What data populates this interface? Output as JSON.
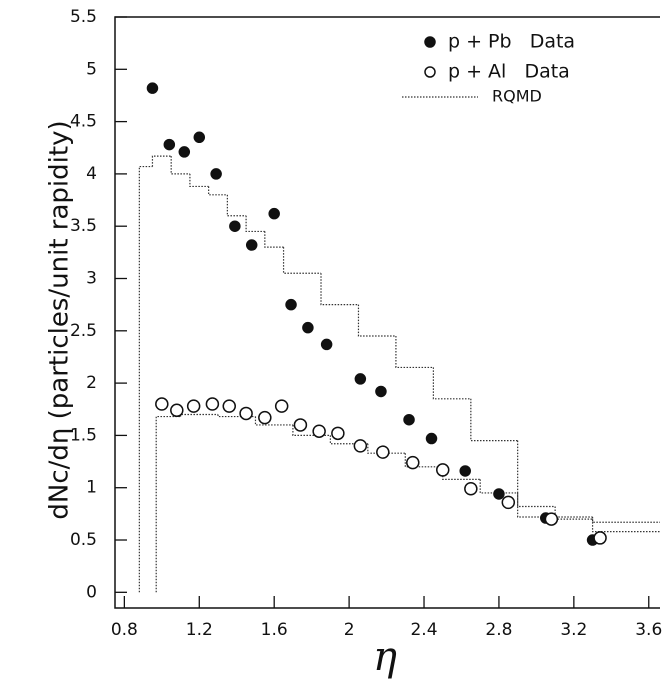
{
  "chart_data": {
    "type": "scatter",
    "xlabel": "η",
    "ylabel": "dNc/dη (particles/unit rapidity)",
    "xlim": [
      0.75,
      3.66
    ],
    "ylim": [
      -0.15,
      5.5
    ],
    "xticks": [
      0.8,
      1.2,
      1.6,
      2,
      2.4,
      2.8,
      3.2,
      3.6
    ],
    "yticks": [
      0,
      0.5,
      1,
      1.5,
      2,
      2.5,
      3,
      3.5,
      4,
      4.5,
      5,
      5.5
    ],
    "legend": "upper right",
    "series": [
      {
        "name": "p + Pb   Data",
        "color": "#111111",
        "marker": "filled",
        "x": [
          0.95,
          1.04,
          1.12,
          1.2,
          1.29,
          1.39,
          1.48,
          1.6,
          1.69,
          1.78,
          1.88,
          2.06,
          2.17,
          2.32,
          2.44,
          2.62,
          2.8,
          3.05,
          3.3
        ],
        "values": [
          4.82,
          4.28,
          4.21,
          4.35,
          4.0,
          3.5,
          3.32,
          3.62,
          2.75,
          2.53,
          2.37,
          2.04,
          1.92,
          1.65,
          1.47,
          1.16,
          0.94,
          0.71,
          0.5
        ]
      },
      {
        "name": "p + Al   Data",
        "color": "#111111",
        "marker": "open",
        "x": [
          1.0,
          1.08,
          1.17,
          1.27,
          1.36,
          1.45,
          1.55,
          1.64,
          1.74,
          1.84,
          1.94,
          2.06,
          2.18,
          2.34,
          2.5,
          2.65,
          2.85,
          3.08,
          3.34
        ],
        "values": [
          1.8,
          1.74,
          1.78,
          1.8,
          1.78,
          1.71,
          1.67,
          1.78,
          1.6,
          1.54,
          1.52,
          1.4,
          1.34,
          1.24,
          1.17,
          0.99,
          0.86,
          0.7,
          0.52
        ]
      }
    ],
    "step_name": "RQMD",
    "step_series": [
      {
        "bins": [
          0.88,
          0.95,
          1.05,
          1.15,
          1.25,
          1.35,
          1.45,
          1.55,
          1.65,
          1.85,
          2.05,
          2.25,
          2.45,
          2.65,
          2.9,
          3.3,
          3.66
        ],
        "values": [
          4.07,
          4.17,
          4.0,
          3.88,
          3.8,
          3.6,
          3.45,
          3.3,
          3.05,
          2.75,
          2.45,
          2.15,
          1.85,
          1.45,
          0.72,
          0.67
        ]
      },
      {
        "bins": [
          0.97,
          1.1,
          1.3,
          1.5,
          1.7,
          1.9,
          2.1,
          2.3,
          2.5,
          2.7,
          2.9,
          3.1,
          3.3,
          3.66
        ],
        "values": [
          1.68,
          1.7,
          1.68,
          1.6,
          1.5,
          1.42,
          1.33,
          1.2,
          1.08,
          0.95,
          0.82,
          0.7,
          0.58
        ]
      }
    ]
  }
}
